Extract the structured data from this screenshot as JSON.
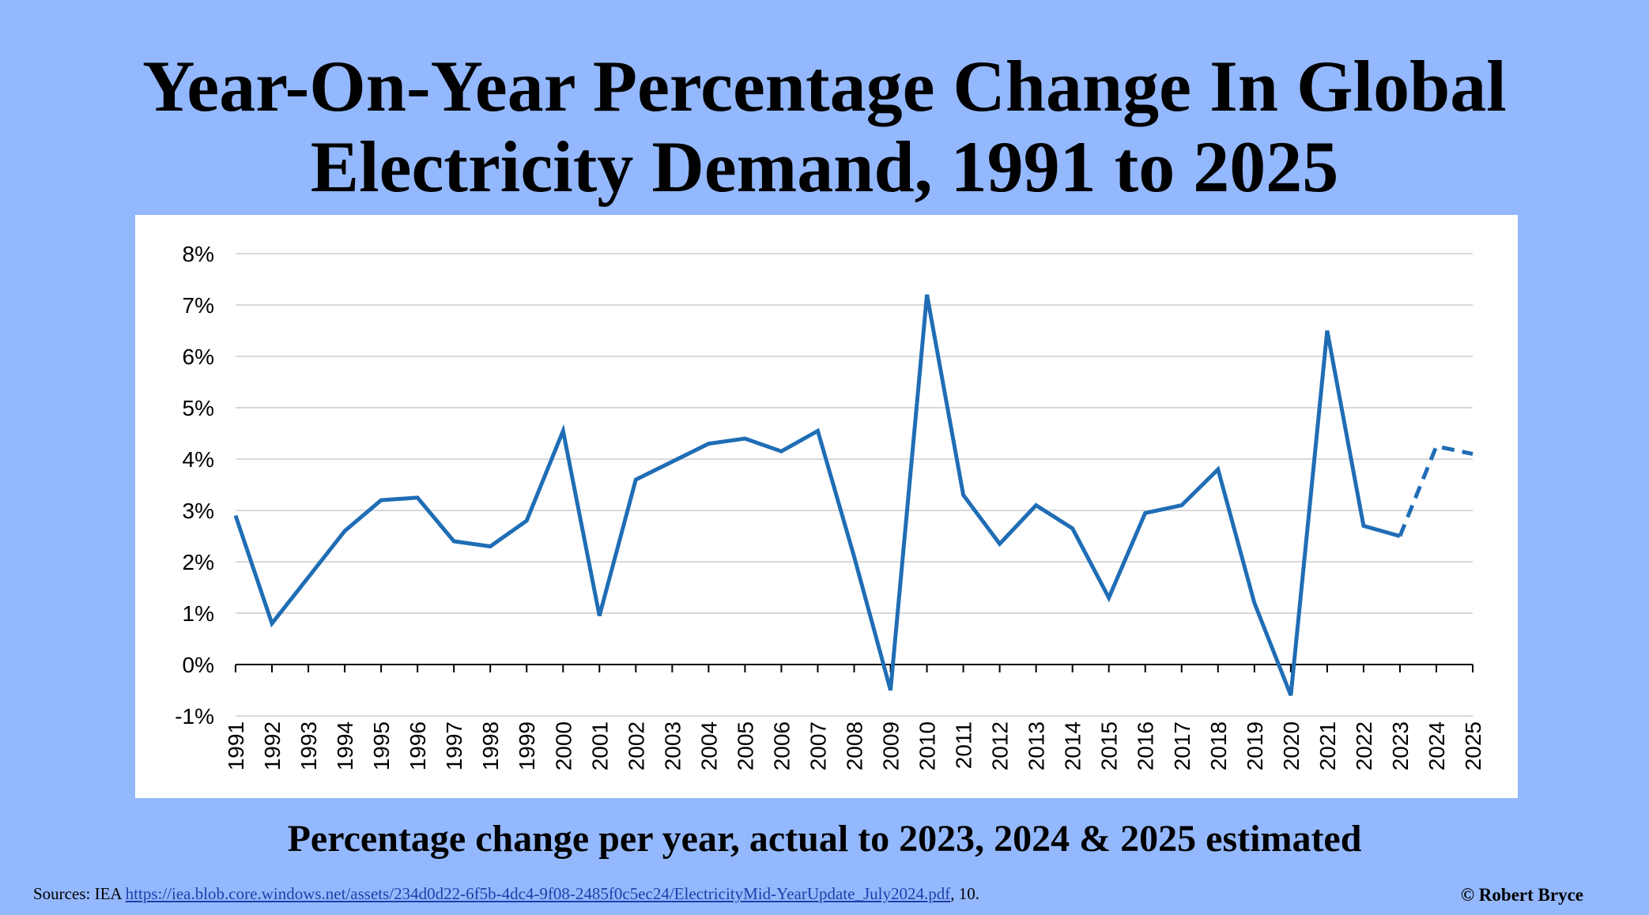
{
  "title_lines": [
    "Year-On-Year Percentage Change In Global",
    "Electricity Demand, 1991 to 2025"
  ],
  "subtitle": "Percentage change per year, actual to 2023, 2024 & 2025 estimated",
  "sources": {
    "prefix": "Sources:  IEA ",
    "link_text": "https://iea.blob.core.windows.net/assets/234d0d22-6f5b-4dc4-9f08-2485f0c5ec24/ElectricityMid-YearUpdate_July2024.pdf",
    "suffix": ", 10."
  },
  "credit": "© Robert Bryce",
  "chart_data": {
    "type": "line",
    "title": "",
    "xlabel": "",
    "ylabel": "",
    "x": [
      "1991",
      "1992",
      "1993",
      "1994",
      "1995",
      "1996",
      "1997",
      "1998",
      "1999",
      "2000",
      "2001",
      "2002",
      "2003",
      "2004",
      "2005",
      "2006",
      "2007",
      "2008",
      "2009",
      "2010",
      "2011",
      "2012",
      "2013",
      "2014",
      "2015",
      "2016",
      "2017",
      "2018",
      "2019",
      "2020",
      "2021",
      "2022",
      "2023",
      "2024",
      "2025"
    ],
    "series": [
      {
        "values": [
          2.9,
          0.8,
          1.7,
          2.6,
          3.2,
          3.25,
          2.4,
          2.3,
          2.8,
          4.55,
          0.95,
          3.6,
          3.95,
          4.3,
          4.4,
          4.15,
          4.55,
          2.1,
          -0.5,
          7.2,
          3.3,
          2.35,
          3.1,
          2.65,
          1.3,
          2.95,
          3.1,
          3.8,
          1.2,
          -0.6,
          6.5,
          2.7,
          2.5,
          4.25,
          4.1
        ],
        "actual_through": "2023",
        "estimated": [
          "2024",
          "2025"
        ],
        "color": "#1f6db5"
      }
    ],
    "y_ticks": [
      "-1%",
      "0%",
      "1%",
      "2%",
      "3%",
      "4%",
      "5%",
      "6%",
      "7%",
      "8%"
    ],
    "ylim": [
      -1,
      8
    ],
    "grid": true,
    "legend": "none"
  }
}
